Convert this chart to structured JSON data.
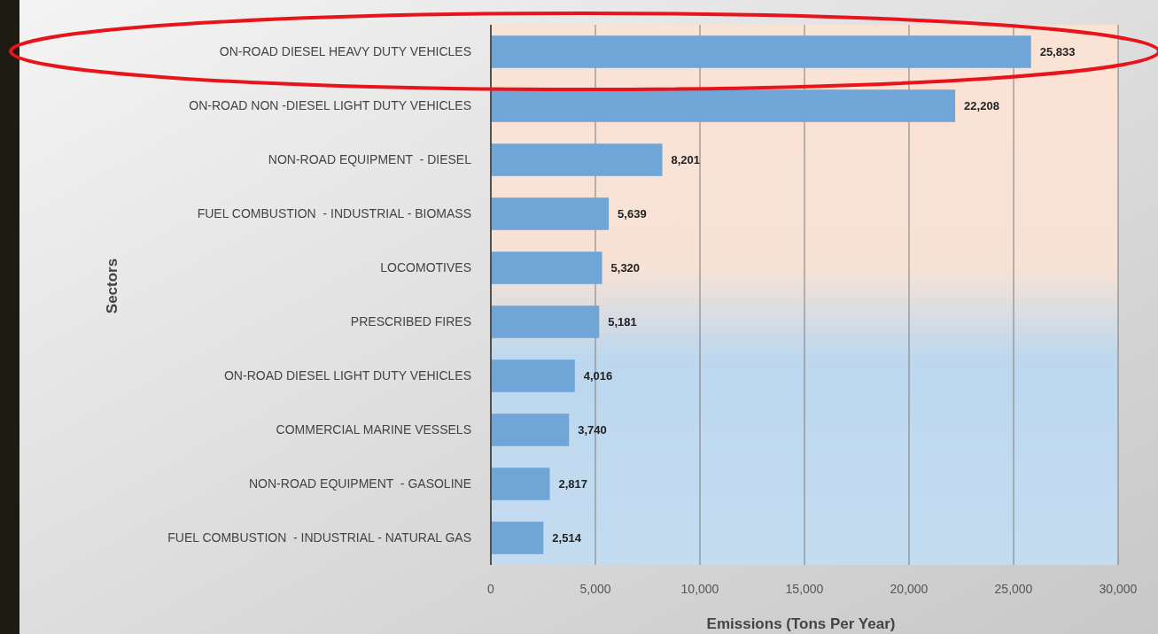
{
  "chart_data": {
    "type": "bar",
    "orientation": "horizontal",
    "xlabel": "Emissions (Tons Per Year)",
    "ylabel": "Sectors",
    "categories": [
      "ON-ROAD DIESEL HEAVY DUTY VEHICLES",
      "ON-ROAD NON -DIESEL LIGHT DUTY VEHICLES",
      "NON-ROAD EQUIPMENT  - DIESEL",
      "FUEL COMBUSTION  - INDUSTRIAL - BIOMASS",
      "LOCOMOTIVES",
      "PRESCRIBED FIRES",
      "ON-ROAD DIESEL LIGHT DUTY VEHICLES",
      "COMMERCIAL MARINE VESSELS",
      "NON-ROAD EQUIPMENT  - GASOLINE",
      "FUEL COMBUSTION  - INDUSTRIAL - NATURAL GAS"
    ],
    "values": [
      25833,
      22208,
      8201,
      5639,
      5320,
      5181,
      4016,
      3740,
      2817,
      2514
    ],
    "value_labels": [
      "25,833",
      "22,208",
      "8,201",
      "5,639",
      "5,320",
      "5,181",
      "4,016",
      "3,740",
      "2,817",
      "2,514"
    ],
    "color": "#6fa5d7",
    "xlim": [
      0,
      30000
    ],
    "xticks": [
      0,
      {
        "value": 5000,
        "label": "5,000"
      },
      {
        "value": 10000,
        "label": "10,000"
      },
      {
        "value": 15000,
        "label": "15,000"
      },
      {
        "value": 20000,
        "label": "20,000"
      },
      {
        "value": 25000,
        "label": "25,000"
      },
      {
        "value": 30000,
        "label": "30,000"
      }
    ],
    "grid": "x"
  }
}
